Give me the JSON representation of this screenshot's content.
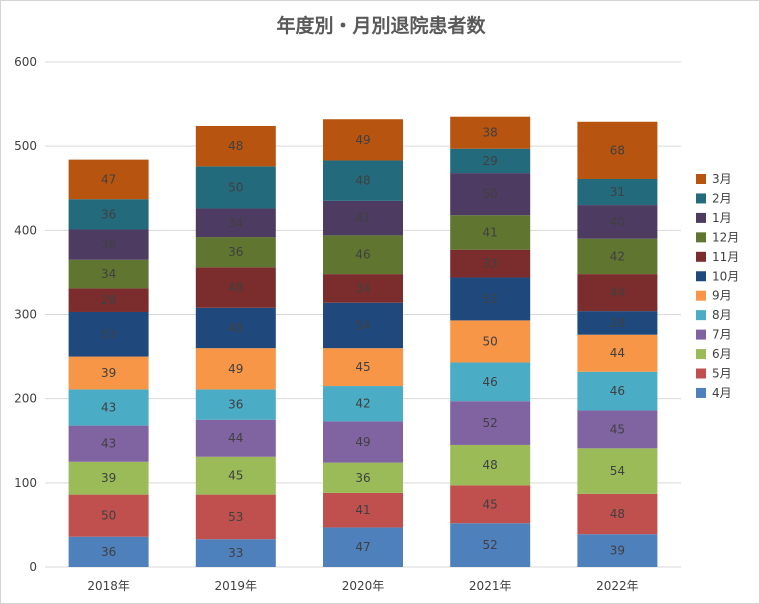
{
  "chart_data": {
    "type": "bar",
    "stacked": true,
    "title": "年度別・月別退院患者数",
    "xlabel": "",
    "ylabel": "",
    "categories": [
      "2018年",
      "2019年",
      "2020年",
      "2021年",
      "2022年"
    ],
    "ylim": [
      0,
      600
    ],
    "yticks": [
      0,
      100,
      200,
      300,
      400,
      500,
      600
    ],
    "grid": true,
    "legend_position": "right",
    "series": [
      {
        "name": "4月",
        "color": "#4e80bc",
        "values": [
          36,
          33,
          47,
          52,
          39
        ]
      },
      {
        "name": "5月",
        "color": "#c0504d",
        "values": [
          50,
          53,
          41,
          45,
          48
        ]
      },
      {
        "name": "6月",
        "color": "#9bbb59",
        "values": [
          39,
          45,
          36,
          48,
          54
        ]
      },
      {
        "name": "7月",
        "color": "#8064a2",
        "values": [
          43,
          44,
          49,
          52,
          45
        ]
      },
      {
        "name": "8月",
        "color": "#4bacc6",
        "values": [
          43,
          36,
          42,
          46,
          46
        ]
      },
      {
        "name": "9月",
        "color": "#f79646",
        "values": [
          39,
          49,
          45,
          50,
          44
        ]
      },
      {
        "name": "10月",
        "color": "#1f497d",
        "values": [
          53,
          48,
          54,
          51,
          28
        ]
      },
      {
        "name": "11月",
        "color": "#7b2c2c",
        "values": [
          28,
          48,
          34,
          33,
          44
        ]
      },
      {
        "name": "12月",
        "color": "#5f7530",
        "values": [
          34,
          36,
          46,
          41,
          42
        ]
      },
      {
        "name": "1月",
        "color": "#4d3b62",
        "values": [
          36,
          34,
          41,
          50,
          40
        ]
      },
      {
        "name": "2月",
        "color": "#236a7c",
        "values": [
          36,
          50,
          48,
          29,
          31
        ]
      },
      {
        "name": "3月",
        "color": "#b75510",
        "values": [
          47,
          48,
          49,
          38,
          68
        ]
      }
    ]
  }
}
